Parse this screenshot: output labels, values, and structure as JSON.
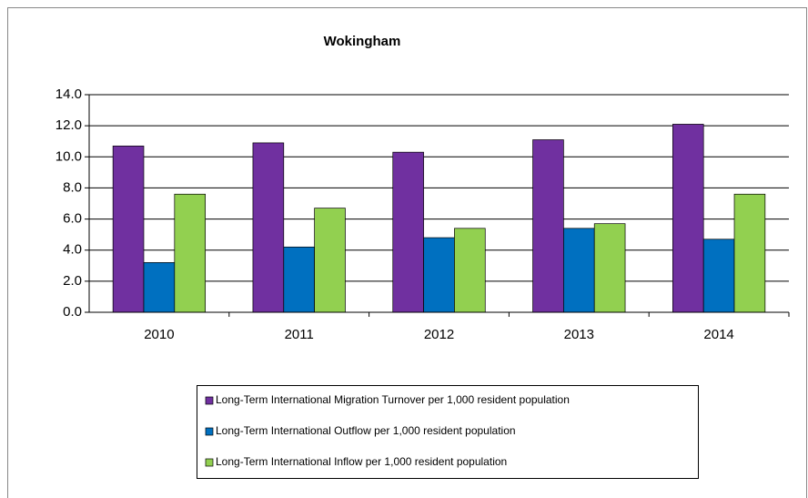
{
  "chart_data": {
    "type": "bar",
    "title": "Wokingham",
    "categories": [
      "2010",
      "2011",
      "2012",
      "2013",
      "2014"
    ],
    "series": [
      {
        "name": "Long-Term International Migration Turnover per 1,000 resident population",
        "color": "#7030a0",
        "values": [
          10.7,
          10.9,
          10.3,
          11.1,
          12.1
        ]
      },
      {
        "name": "Long-Term International Outflow per 1,000 resident population",
        "color": "#0070c0",
        "values": [
          3.2,
          4.2,
          4.8,
          5.4,
          4.7
        ]
      },
      {
        "name": "Long-Term International Inflow per 1,000 resident population",
        "color": "#92d050",
        "values": [
          7.6,
          6.7,
          5.4,
          5.7,
          7.6
        ]
      }
    ],
    "ylim": [
      0,
      14
    ],
    "yticks": [
      {
        "value": 0,
        "label": "0.0"
      },
      {
        "value": 2,
        "label": "2.0"
      },
      {
        "value": 4,
        "label": "4.0"
      },
      {
        "value": 6,
        "label": "6.0"
      },
      {
        "value": 8,
        "label": "8.0"
      },
      {
        "value": 10,
        "label": "10.0"
      },
      {
        "value": 12,
        "label": "12.0"
      },
      {
        "value": 14,
        "label": "14.0"
      }
    ],
    "grid": true,
    "legend": "bottom"
  }
}
